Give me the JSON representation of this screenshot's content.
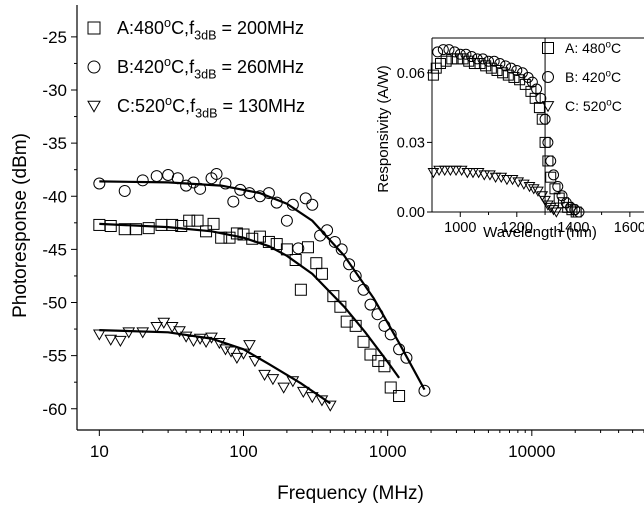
{
  "chart_data": [
    {
      "type": "scatter",
      "title": "",
      "xlabel": "Frequency (MHz)",
      "ylabel": "Photoresponse (dBm)",
      "xscale": "log",
      "xlim": [
        7,
        60000
      ],
      "ylim": [
        -62,
        -22
      ],
      "xticks": [
        10,
        100,
        1000,
        10000
      ],
      "xtick_labels": [
        "10",
        "100",
        "1000",
        "10000"
      ],
      "yticks": [
        -25,
        -30,
        -35,
        -40,
        -45,
        -50,
        -55,
        -60
      ],
      "ytick_labels": [
        "-25",
        "-30",
        "-35",
        "-40",
        "-45",
        "-50",
        "-55",
        "-60"
      ],
      "legend_position": "top-left",
      "series": [
        {
          "name": "A:480°C,f3dB = 200MHz",
          "legend": {
            "main": "A:480",
            "deg": "o",
            "mid": "C,f",
            "sub": "3dB",
            "tail": " = 200MHz"
          },
          "marker": "square",
          "points": [
            [
              10,
              -42.7
            ],
            [
              12,
              -42.8
            ],
            [
              15,
              -43.1
            ],
            [
              18,
              -43.1
            ],
            [
              22,
              -43.0
            ],
            [
              27,
              -42.7
            ],
            [
              32,
              -42.7
            ],
            [
              37,
              -42.8
            ],
            [
              42,
              -42.3
            ],
            [
              48,
              -42.3
            ],
            [
              55,
              -43.3
            ],
            [
              62,
              -42.6
            ],
            [
              70,
              -43.9
            ],
            [
              80,
              -43.9
            ],
            [
              90,
              -43.5
            ],
            [
              100,
              -43.6
            ],
            [
              115,
              -44.0
            ],
            [
              130,
              -43.8
            ],
            [
              150,
              -44.3
            ],
            [
              170,
              -44.5
            ],
            [
              200,
              -45.0
            ],
            [
              230,
              -46.0
            ],
            [
              250,
              -48.8
            ],
            [
              280,
              -44.8
            ],
            [
              320,
              -46.3
            ],
            [
              350,
              -47.3
            ],
            [
              420,
              -49.4
            ],
            [
              470,
              -50.4
            ],
            [
              520,
              -51.8
            ],
            [
              600,
              -52.2
            ],
            [
              680,
              -53.7
            ],
            [
              760,
              -54.9
            ],
            [
              860,
              -55.5
            ],
            [
              950,
              -56.0
            ],
            [
              1050,
              -58.0
            ],
            [
              1200,
              -58.8
            ]
          ],
          "fit": [
            [
              10,
              -42.6
            ],
            [
              30,
              -42.9
            ],
            [
              60,
              -43.3
            ],
            [
              100,
              -43.9
            ],
            [
              150,
              -44.7
            ],
            [
              200,
              -45.6
            ],
            [
              300,
              -47.3
            ],
            [
              500,
              -50.4
            ],
            [
              700,
              -52.8
            ],
            [
              1000,
              -55.6
            ],
            [
              1200,
              -57.1
            ]
          ]
        },
        {
          "name": "B:420°C,f3dB = 260MHz",
          "legend": {
            "main": "B:420",
            "deg": "o",
            "mid": "C,f",
            "sub": "3dB",
            "tail": " = 260MHz"
          },
          "marker": "circle",
          "points": [
            [
              10,
              -38.8
            ],
            [
              15,
              -39.5
            ],
            [
              20,
              -38.5
            ],
            [
              25,
              -38.1
            ],
            [
              30,
              -38.0
            ],
            [
              35,
              -38.3
            ],
            [
              40,
              -39.0
            ],
            [
              45,
              -38.7
            ],
            [
              50,
              -39.3
            ],
            [
              60,
              -38.3
            ],
            [
              65,
              -37.9
            ],
            [
              75,
              -38.8
            ],
            [
              85,
              -40.5
            ],
            [
              95,
              -39.4
            ],
            [
              110,
              -39.7
            ],
            [
              130,
              -40.0
            ],
            [
              150,
              -39.7
            ],
            [
              170,
              -40.6
            ],
            [
              200,
              -42.3
            ],
            [
              220,
              -40.8
            ],
            [
              240,
              -44.9
            ],
            [
              270,
              -40.2
            ],
            [
              300,
              -40.8
            ],
            [
              340,
              -43.7
            ],
            [
              380,
              -43.2
            ],
            [
              430,
              -44.3
            ],
            [
              480,
              -45.0
            ],
            [
              540,
              -46.4
            ],
            [
              600,
              -47.5
            ],
            [
              680,
              -48.8
            ],
            [
              760,
              -50.2
            ],
            [
              850,
              -51.1
            ],
            [
              950,
              -52.2
            ],
            [
              1050,
              -53.0
            ],
            [
              1200,
              -54.4
            ],
            [
              1350,
              -55.2
            ],
            [
              1800,
              -58.3
            ]
          ],
          "fit": [
            [
              10,
              -38.6
            ],
            [
              30,
              -38.7
            ],
            [
              70,
              -39.0
            ],
            [
              130,
              -39.7
            ],
            [
              200,
              -40.7
            ],
            [
              300,
              -42.3
            ],
            [
              500,
              -45.6
            ],
            [
              800,
              -49.6
            ],
            [
              1200,
              -53.8
            ],
            [
              1800,
              -58.2
            ]
          ]
        },
        {
          "name": "C:520°C,f3dB = 130MHz",
          "legend": {
            "main": "C:520",
            "deg": "o",
            "mid": "C,f",
            "sub": "3dB",
            "tail": " = 130MHz"
          },
          "marker": "triangle-down",
          "points": [
            [
              10,
              -53.0
            ],
            [
              12,
              -53.5
            ],
            [
              14,
              -53.6
            ],
            [
              16,
              -52.8
            ],
            [
              20,
              -52.8
            ],
            [
              25,
              -52.3
            ],
            [
              28,
              -51.9
            ],
            [
              32,
              -52.3
            ],
            [
              36,
              -52.7
            ],
            [
              40,
              -53.2
            ],
            [
              45,
              -53.6
            ],
            [
              50,
              -53.4
            ],
            [
              55,
              -53.7
            ],
            [
              60,
              -53.3
            ],
            [
              68,
              -53.8
            ],
            [
              75,
              -54.4
            ],
            [
              82,
              -54.6
            ],
            [
              90,
              -55.2
            ],
            [
              100,
              -54.8
            ],
            [
              110,
              -54.0
            ],
            [
              120,
              -55.5
            ],
            [
              140,
              -56.8
            ],
            [
              160,
              -57.2
            ],
            [
              190,
              -58.0
            ],
            [
              220,
              -57.4
            ],
            [
              260,
              -58.4
            ],
            [
              300,
              -58.9
            ],
            [
              350,
              -59.2
            ],
            [
              400,
              -59.7
            ]
          ],
          "fit": [
            [
              10,
              -52.6
            ],
            [
              30,
              -52.8
            ],
            [
              60,
              -53.4
            ],
            [
              100,
              -54.4
            ],
            [
              150,
              -55.8
            ],
            [
              250,
              -57.6
            ],
            [
              400,
              -59.5
            ]
          ]
        }
      ]
    },
    {
      "type": "scatter",
      "title": "",
      "xlabel": "Wavelength (nm)",
      "ylabel": "Responsivity (A/W)",
      "xlim": [
        900,
        1650
      ],
      "ylim": [
        0,
        0.075
      ],
      "xticks": [
        1000,
        1200,
        1400,
        1600
      ],
      "xtick_labels": [
        "1000",
        "1200",
        "1400",
        "1600"
      ],
      "yticks": [
        0.0,
        0.03,
        0.06
      ],
      "ytick_labels": [
        "0.00",
        "0.03",
        "0.06"
      ],
      "reference_line_x": 1300,
      "legend_position": "right",
      "series": [
        {
          "name": "A: 480°C",
          "legend": {
            "main": "A: 480",
            "deg": "o",
            "tail": "C"
          },
          "marker": "square",
          "points": [
            [
              905,
              0.059
            ],
            [
              915,
              0.062
            ],
            [
              930,
              0.064
            ],
            [
              950,
              0.065
            ],
            [
              970,
              0.066
            ],
            [
              990,
              0.066
            ],
            [
              1010,
              0.066
            ],
            [
              1030,
              0.065
            ],
            [
              1050,
              0.064
            ],
            [
              1070,
              0.064
            ],
            [
              1090,
              0.063
            ],
            [
              1110,
              0.062
            ],
            [
              1130,
              0.061
            ],
            [
              1150,
              0.06
            ],
            [
              1170,
              0.059
            ],
            [
              1190,
              0.058
            ],
            [
              1210,
              0.057
            ],
            [
              1230,
              0.055
            ],
            [
              1250,
              0.052
            ],
            [
              1265,
              0.049
            ],
            [
              1280,
              0.045
            ],
            [
              1290,
              0.04
            ],
            [
              1300,
              0.03
            ],
            [
              1310,
              0.022
            ],
            [
              1320,
              0.015
            ],
            [
              1335,
              0.01
            ],
            [
              1350,
              0.006
            ],
            [
              1365,
              0.004
            ],
            [
              1380,
              0.002
            ],
            [
              1395,
              0.001
            ],
            [
              1410,
              0.0
            ]
          ]
        },
        {
          "name": "B: 420°C",
          "legend": {
            "main": "B: 420",
            "deg": "o",
            "tail": "C"
          },
          "marker": "circle",
          "points": [
            [
              920,
              0.069
            ],
            [
              940,
              0.07
            ],
            [
              960,
              0.07
            ],
            [
              980,
              0.069
            ],
            [
              1000,
              0.068
            ],
            [
              1020,
              0.068
            ],
            [
              1040,
              0.067
            ],
            [
              1060,
              0.066
            ],
            [
              1080,
              0.066
            ],
            [
              1100,
              0.065
            ],
            [
              1120,
              0.065
            ],
            [
              1140,
              0.064
            ],
            [
              1160,
              0.063
            ],
            [
              1180,
              0.062
            ],
            [
              1200,
              0.061
            ],
            [
              1220,
              0.06
            ],
            [
              1240,
              0.058
            ],
            [
              1255,
              0.056
            ],
            [
              1270,
              0.053
            ],
            [
              1285,
              0.049
            ],
            [
              1300,
              0.04
            ],
            [
              1310,
              0.03
            ],
            [
              1320,
              0.022
            ],
            [
              1330,
              0.016
            ],
            [
              1345,
              0.011
            ],
            [
              1360,
              0.007
            ],
            [
              1375,
              0.004
            ],
            [
              1390,
              0.002
            ],
            [
              1405,
              0.001
            ],
            [
              1420,
              0.0
            ]
          ]
        },
        {
          "name": "C: 520°C",
          "legend": {
            "main": "C: 520",
            "deg": "o",
            "tail": "C"
          },
          "marker": "triangle-down",
          "points": [
            [
              905,
              0.017
            ],
            [
              925,
              0.018
            ],
            [
              945,
              0.018
            ],
            [
              965,
              0.018
            ],
            [
              985,
              0.018
            ],
            [
              1005,
              0.018
            ],
            [
              1025,
              0.017
            ],
            [
              1045,
              0.017
            ],
            [
              1065,
              0.017
            ],
            [
              1085,
              0.016
            ],
            [
              1105,
              0.016
            ],
            [
              1125,
              0.015
            ],
            [
              1145,
              0.015
            ],
            [
              1165,
              0.014
            ],
            [
              1185,
              0.014
            ],
            [
              1205,
              0.013
            ],
            [
              1225,
              0.012
            ],
            [
              1245,
              0.011
            ],
            [
              1260,
              0.01
            ],
            [
              1275,
              0.009
            ],
            [
              1290,
              0.007
            ],
            [
              1300,
              0.005
            ],
            [
              1310,
              0.003
            ],
            [
              1320,
              0.002
            ],
            [
              1330,
              0.001
            ],
            [
              1340,
              0.0
            ]
          ]
        }
      ]
    }
  ]
}
